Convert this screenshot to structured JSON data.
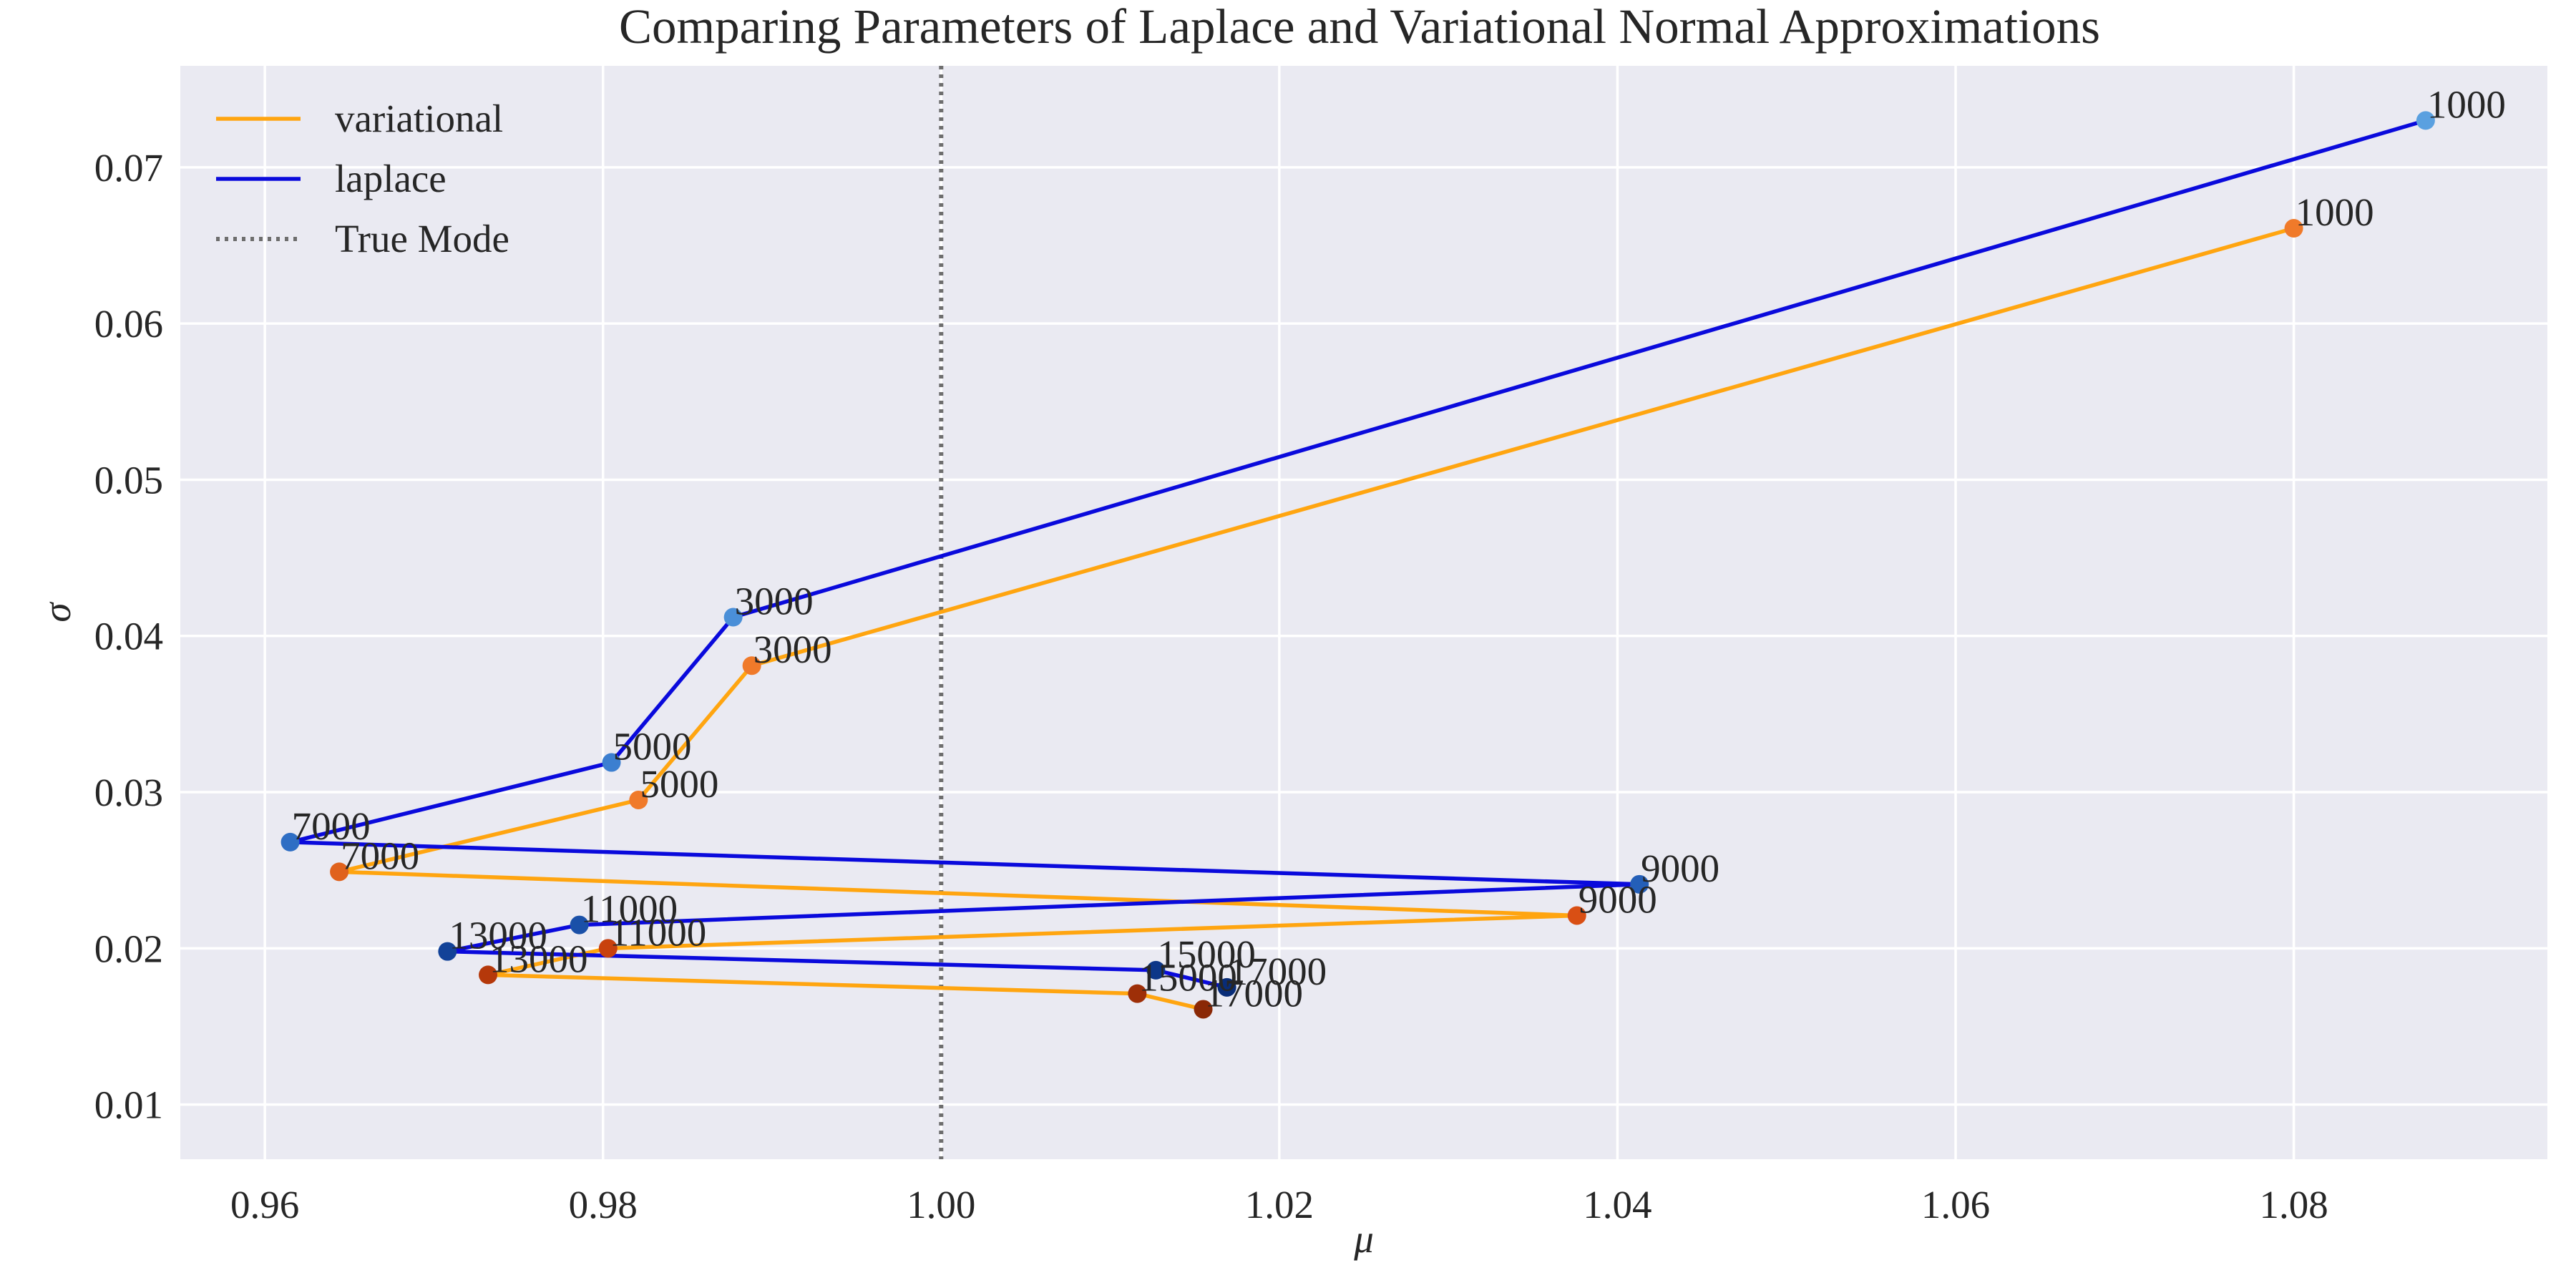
{
  "chart_data": {
    "type": "line",
    "title": "Comparing Parameters of Laplace and Variational Normal Approximations",
    "xlabel": "μ",
    "ylabel": "σ",
    "xlim": [
      0.955,
      1.095
    ],
    "ylim": [
      0.0065,
      0.0765
    ],
    "xticks": [
      "0.96",
      "0.98",
      "1.00",
      "1.02",
      "1.04",
      "1.06",
      "1.08"
    ],
    "xtick_values": [
      0.96,
      0.98,
      1.0,
      1.02,
      1.04,
      1.06,
      1.08
    ],
    "yticks": [
      "0.01",
      "0.02",
      "0.03",
      "0.04",
      "0.05",
      "0.06",
      "0.07"
    ],
    "ytick_values": [
      0.01,
      0.02,
      0.03,
      0.04,
      0.05,
      0.06,
      0.07
    ],
    "grid": true,
    "legend_position": "top-left",
    "background": "#eaeaf2",
    "series": [
      {
        "name": "variational",
        "color": "#ffa510",
        "labels": [
          "1000",
          "3000",
          "5000",
          "7000",
          "9000",
          "11000",
          "13000",
          "15000",
          "17000"
        ],
        "x": [
          1.08,
          0.9888,
          0.9821,
          0.9644,
          1.0376,
          0.9803,
          0.9732,
          1.0116,
          1.0155
        ],
        "y": [
          0.0661,
          0.0381,
          0.0295,
          0.0249,
          0.0221,
          0.02,
          0.0183,
          0.0171,
          0.0161
        ],
        "marker_colors": [
          "#f07a2a",
          "#f07a2a",
          "#f07a2a",
          "#e0621d",
          "#d94f14",
          "#c8410e",
          "#b5380a",
          "#9e2f08",
          "#8a2806"
        ]
      },
      {
        "name": "laplace",
        "color": "#0a0adc",
        "labels": [
          "1000",
          "3000",
          "5000",
          "7000",
          "9000",
          "11000",
          "13000",
          "15000",
          "17000"
        ],
        "x": [
          1.0878,
          0.9877,
          0.9805,
          0.9615,
          1.0413,
          0.9786,
          0.9708,
          1.0127,
          1.0169
        ],
        "y": [
          0.073,
          0.0412,
          0.0319,
          0.0268,
          0.0241,
          0.0215,
          0.0198,
          0.0186,
          0.0175
        ],
        "marker_colors": [
          "#5aa0e0",
          "#4a8fd8",
          "#3c7fd0",
          "#2e6ec4",
          "#245fb8",
          "#1a50a8",
          "#124298",
          "#0c3688",
          "#082c78"
        ]
      }
    ],
    "reference_lines": [
      {
        "name": "True Mode",
        "orientation": "vertical",
        "x": 1.0,
        "color": "#6e6e6e",
        "style": "dotted"
      }
    ],
    "legend": [
      {
        "label": "variational",
        "color": "#ffa510",
        "style": "solid"
      },
      {
        "label": "laplace",
        "color": "#0a0adc",
        "style": "solid"
      },
      {
        "label": "True Mode",
        "color": "#6e6e6e",
        "style": "dotted"
      }
    ]
  }
}
